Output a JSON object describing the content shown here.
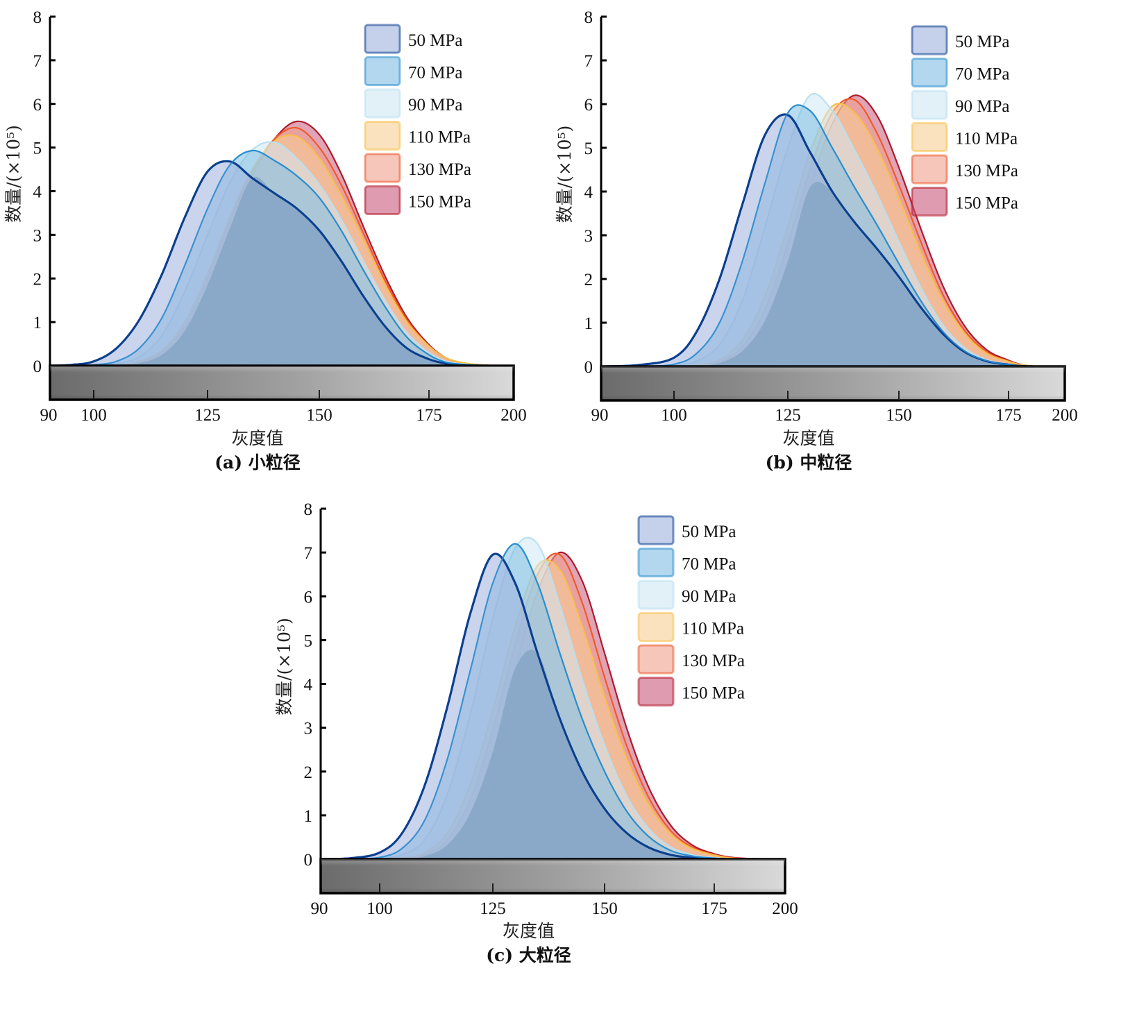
{
  "chart_data": [
    {
      "type": "area",
      "panel": "a",
      "caption": "(a) 小粒径",
      "xlabel": "灰度值",
      "ylabel": "数量/(×10⁵)",
      "xlim": [
        90,
        200
      ],
      "ylim": [
        0,
        8
      ],
      "xticks": [
        90,
        100,
        125,
        150,
        175,
        200
      ],
      "yticks": [
        0,
        1,
        2,
        3,
        4,
        5,
        6,
        7,
        8
      ],
      "legend_position": "top-right",
      "x": [
        90,
        95,
        100,
        105,
        110,
        115,
        120,
        125,
        130,
        135,
        140,
        145,
        150,
        155,
        160,
        165,
        170,
        175,
        180,
        185,
        190,
        195,
        200
      ],
      "series": [
        {
          "name": "50 MPa",
          "peak": [
            128,
            4.72
          ],
          "values": [
            0,
            0.02,
            0.1,
            0.4,
            1.05,
            2.1,
            3.4,
            4.45,
            4.68,
            4.3,
            3.95,
            3.6,
            3.1,
            2.4,
            1.6,
            0.9,
            0.4,
            0.15,
            0.05,
            0.02,
            0,
            0,
            0
          ]
        },
        {
          "name": "70 MPa",
          "peak": [
            135,
            4.93
          ],
          "values": [
            0,
            0,
            0.02,
            0.1,
            0.4,
            1.1,
            2.3,
            3.6,
            4.6,
            4.93,
            4.7,
            4.35,
            3.85,
            3.1,
            2.2,
            1.35,
            0.65,
            0.25,
            0.08,
            0.03,
            0.01,
            0,
            0
          ]
        },
        {
          "name": "90 MPa",
          "peak": [
            138,
            5.15
          ],
          "values": [
            0,
            0,
            0,
            0.05,
            0.2,
            0.7,
            1.7,
            3.0,
            4.2,
            4.95,
            5.12,
            4.75,
            4.15,
            3.35,
            2.4,
            1.5,
            0.75,
            0.3,
            0.1,
            0.04,
            0.01,
            0,
            0
          ]
        },
        {
          "name": "110 MPa",
          "peak": [
            143,
            5.28
          ],
          "values": [
            0,
            0,
            0,
            0.02,
            0.1,
            0.35,
            1.0,
            2.1,
            3.4,
            4.5,
            5.15,
            5.25,
            4.75,
            3.9,
            2.9,
            1.85,
            1.0,
            0.45,
            0.18,
            0.07,
            0.02,
            0,
            0
          ]
        },
        {
          "name": "130 MPa",
          "peak": [
            145,
            5.45
          ],
          "values": [
            0,
            0,
            0,
            0.01,
            0.08,
            0.3,
            0.9,
            2.0,
            3.3,
            4.45,
            5.2,
            5.45,
            5.0,
            4.15,
            3.05,
            1.95,
            1.05,
            0.45,
            0.17,
            0.06,
            0.02,
            0,
            0
          ]
        },
        {
          "name": "150 MPa",
          "peak": [
            146.5,
            5.63
          ],
          "values": [
            0,
            0,
            0,
            0.01,
            0.06,
            0.25,
            0.8,
            1.85,
            3.15,
            4.35,
            5.2,
            5.6,
            5.3,
            4.4,
            3.2,
            2.05,
            1.1,
            0.48,
            0.18,
            0.06,
            0.02,
            0,
            0
          ]
        }
      ]
    },
    {
      "type": "area",
      "panel": "b",
      "caption": "(b) 中粒径",
      "xlabel": "灰度值",
      "ylabel": "数量/(×10⁵)",
      "xlim": [
        90,
        200
      ],
      "ylim": [
        0,
        8
      ],
      "xticks": [
        90,
        100,
        125,
        150,
        175,
        200
      ],
      "yticks": [
        0,
        1,
        2,
        3,
        4,
        5,
        6,
        7,
        8
      ],
      "legend_position": "top-right",
      "x": [
        90,
        95,
        100,
        105,
        110,
        115,
        120,
        125,
        130,
        135,
        140,
        145,
        150,
        155,
        160,
        165,
        170,
        175,
        180,
        185,
        190,
        195,
        200
      ],
      "series": [
        {
          "name": "50 MPa",
          "peak": [
            123,
            5.85
          ],
          "values": [
            0,
            0.03,
            0.2,
            0.8,
            2.0,
            3.7,
            5.3,
            5.75,
            4.9,
            4.0,
            3.3,
            2.7,
            2.05,
            1.35,
            0.75,
            0.33,
            0.12,
            0.04,
            0.01,
            0,
            0,
            0,
            0
          ]
        },
        {
          "name": "70 MPa",
          "peak": [
            126.5,
            6.0
          ],
          "values": [
            0,
            0,
            0.05,
            0.3,
            1.0,
            2.4,
            4.2,
            5.8,
            5.85,
            5.0,
            4.1,
            3.25,
            2.35,
            1.5,
            0.8,
            0.35,
            0.13,
            0.04,
            0.01,
            0,
            0,
            0,
            0
          ]
        },
        {
          "name": "90 MPa",
          "peak": [
            130.5,
            6.25
          ],
          "values": [
            0,
            0,
            0.02,
            0.12,
            0.5,
            1.5,
            3.2,
            5.0,
            6.2,
            5.85,
            4.95,
            3.95,
            2.85,
            1.8,
            0.95,
            0.42,
            0.15,
            0.05,
            0.01,
            0,
            0,
            0,
            0
          ]
        },
        {
          "name": "110 MPa",
          "peak": [
            137,
            6.05
          ],
          "values": [
            0,
            0,
            0,
            0.03,
            0.15,
            0.6,
            1.6,
            3.2,
            4.9,
            5.95,
            5.8,
            5.0,
            3.85,
            2.6,
            1.5,
            0.75,
            0.3,
            0.11,
            0.04,
            0.01,
            0,
            0,
            0
          ]
        },
        {
          "name": "130 MPa",
          "peak": [
            139,
            6.15
          ],
          "values": [
            0,
            0,
            0,
            0.02,
            0.1,
            0.45,
            1.3,
            2.8,
            4.5,
            5.8,
            6.1,
            5.35,
            4.15,
            2.85,
            1.65,
            0.82,
            0.33,
            0.12,
            0.04,
            0.01,
            0,
            0,
            0
          ]
        },
        {
          "name": "150 MPa",
          "peak": [
            141.5,
            6.27
          ],
          "values": [
            0,
            0,
            0,
            0.01,
            0.08,
            0.35,
            1.05,
            2.4,
            4.1,
            5.55,
            6.2,
            5.75,
            4.55,
            3.15,
            1.85,
            0.92,
            0.38,
            0.14,
            0.05,
            0.01,
            0,
            0,
            0
          ]
        }
      ]
    },
    {
      "type": "area",
      "panel": "c",
      "caption": "(c) 大粒径",
      "xlabel": "灰度值",
      "ylabel": "数量/(×10⁵)",
      "xlim": [
        90,
        200
      ],
      "ylim": [
        0,
        8
      ],
      "xticks": [
        90,
        100,
        125,
        150,
        175,
        200
      ],
      "yticks": [
        0,
        1,
        2,
        3,
        4,
        5,
        6,
        7,
        8
      ],
      "legend_position": "top-right",
      "x": [
        90,
        95,
        100,
        105,
        110,
        115,
        120,
        125,
        130,
        135,
        140,
        145,
        150,
        155,
        160,
        165,
        170,
        175,
        180,
        185,
        190,
        195,
        200
      ],
      "series": [
        {
          "name": "50 MPa",
          "peak": [
            124.8,
            6.97
          ],
          "values": [
            0,
            0.02,
            0.15,
            0.6,
            1.7,
            3.5,
            5.6,
            6.95,
            6.3,
            4.7,
            3.2,
            2.0,
            1.15,
            0.6,
            0.27,
            0.1,
            0.03,
            0.01,
            0,
            0,
            0,
            0,
            0
          ]
        },
        {
          "name": "70 MPa",
          "peak": [
            129.7,
            7.25
          ],
          "values": [
            0,
            0,
            0.04,
            0.25,
            0.9,
            2.3,
            4.3,
            6.3,
            7.2,
            6.3,
            4.7,
            3.2,
            2.0,
            1.1,
            0.52,
            0.2,
            0.07,
            0.02,
            0,
            0,
            0,
            0,
            0
          ]
        },
        {
          "name": "90 MPa",
          "peak": [
            132.5,
            7.43
          ],
          "values": [
            0,
            0,
            0.02,
            0.1,
            0.45,
            1.5,
            3.3,
            5.5,
            7.1,
            7.2,
            5.8,
            4.1,
            2.6,
            1.45,
            0.7,
            0.28,
            0.1,
            0.03,
            0.01,
            0,
            0,
            0,
            0
          ]
        },
        {
          "name": "110 MPa",
          "peak": [
            137,
            6.9
          ],
          "values": [
            0,
            0,
            0,
            0.03,
            0.15,
            0.6,
            1.7,
            3.4,
            5.3,
            6.7,
            6.6,
            5.3,
            3.7,
            2.3,
            1.25,
            0.58,
            0.24,
            0.09,
            0.03,
            0.01,
            0,
            0,
            0
          ]
        },
        {
          "name": "130 MPa",
          "peak": [
            138.7,
            7.0
          ],
          "values": [
            0,
            0,
            0,
            0.02,
            0.1,
            0.45,
            1.35,
            2.95,
            4.9,
            6.5,
            6.95,
            5.85,
            4.15,
            2.6,
            1.42,
            0.66,
            0.27,
            0.1,
            0.04,
            0.01,
            0,
            0,
            0
          ]
        },
        {
          "name": "150 MPa",
          "peak": [
            141.4,
            7.07
          ],
          "values": [
            0,
            0,
            0,
            0.01,
            0.07,
            0.33,
            1.05,
            2.45,
            4.35,
            6.1,
            7.0,
            6.35,
            4.7,
            3.0,
            1.65,
            0.78,
            0.32,
            0.12,
            0.05,
            0.02,
            0.01,
            0,
            0
          ]
        }
      ]
    }
  ],
  "legend": {
    "entries": [
      "50 MPa",
      "70 MPa",
      "90 MPa",
      "110 MPa",
      "130 MPa",
      "150 MPa"
    ]
  },
  "colors": {
    "series_fill": [
      "#9fb1dc",
      "#7fbde2",
      "#cfe8f4",
      "#f8cf93",
      "#f0a08d",
      "#c9587a"
    ],
    "series_line": [
      "#0b3f8f",
      "#2b8fd0",
      "#b9e0f0",
      "#f7c14a",
      "#ef5a2a",
      "#b01a2a"
    ],
    "common_fill": "#86a6c4",
    "gray_bar_dark": "#6d6d6d",
    "gray_bar_light": "#d6d6d6"
  }
}
